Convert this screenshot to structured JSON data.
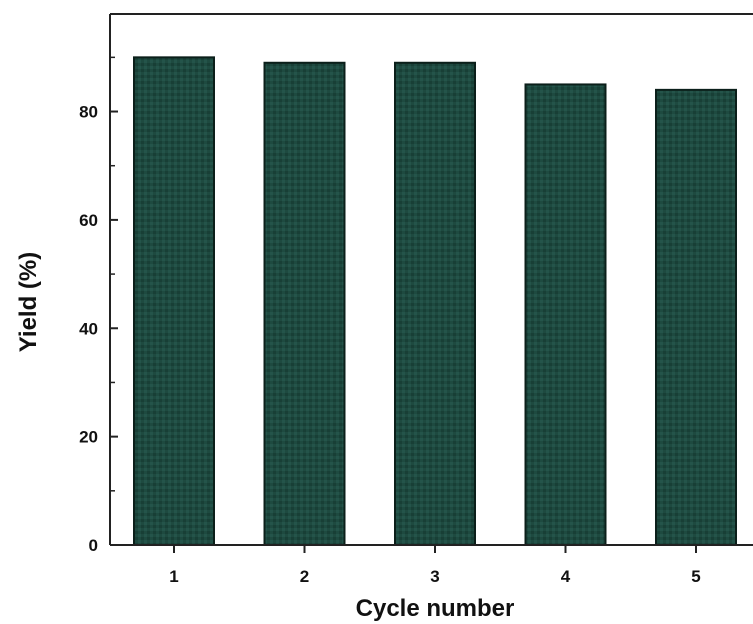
{
  "chart_data": {
    "type": "bar",
    "title": "",
    "xlabel": "Cycle number",
    "ylabel": "Yield (%)",
    "categories": [
      "1",
      "2",
      "3",
      "4",
      "5"
    ],
    "values": [
      90,
      89,
      89,
      85,
      84
    ],
    "ylim": [
      0,
      98
    ],
    "yticks": [
      0,
      20,
      40,
      60,
      80
    ],
    "ytick_labels": [
      "0",
      "20",
      "40",
      "60",
      "80"
    ],
    "grid": false,
    "bar_color": "#1e4a40",
    "bar_edge_color": "#0b1f1a",
    "axis_color": "#222222"
  }
}
